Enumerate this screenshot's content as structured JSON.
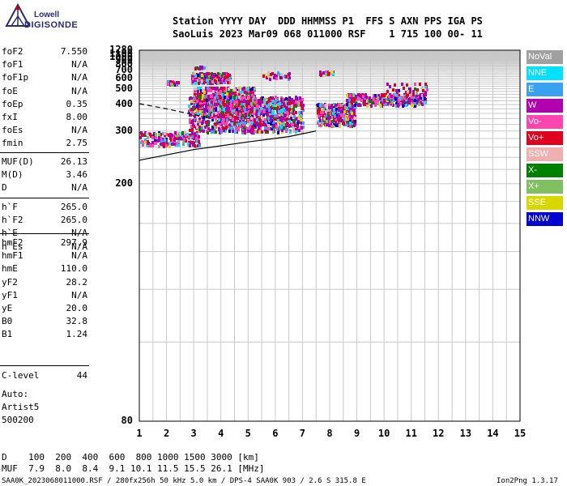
{
  "logo": {
    "line1": "Lowell",
    "line2": "DIGISONDE"
  },
  "header": {
    "line1": "Station YYYY DAY  DDD HHMMSS P1  FFS S AXN PPS IGA PS",
    "line2": "SaoLuis 2023 Mar09 068 011000 RSF    1 715 100 00- 11"
  },
  "params_group1": [
    {
      "name": "foF2",
      "value": "7.550"
    },
    {
      "name": "foF1",
      "value": "N/A"
    },
    {
      "name": "foF1p",
      "value": "N/A"
    },
    {
      "name": "foE",
      "value": "N/A"
    },
    {
      "name": "foEp",
      "value": "0.35"
    },
    {
      "name": "fxI",
      "value": "8.00"
    },
    {
      "name": "foEs",
      "value": "N/A"
    },
    {
      "name": "fmin",
      "value": "2.75"
    }
  ],
  "params_group2": [
    {
      "name": "MUF(D)",
      "value": "26.13"
    },
    {
      "name": "M(D)",
      "value": "3.46"
    },
    {
      "name": "D",
      "value": "N/A"
    }
  ],
  "params_group3": [
    {
      "name": "h`F",
      "value": "265.0"
    },
    {
      "name": "h`F2",
      "value": "265.0"
    },
    {
      "name": "h`E",
      "value": "N/A"
    },
    {
      "name": "h`Es",
      "value": "N/A"
    }
  ],
  "params_group4": [
    {
      "name": "hmF2",
      "value": "297.9"
    },
    {
      "name": "hmF1",
      "value": "N/A"
    },
    {
      "name": "hmE",
      "value": "110.0"
    },
    {
      "name": "yF2",
      "value": "28.2"
    },
    {
      "name": "yF1",
      "value": "N/A"
    },
    {
      "name": "yE",
      "value": "20.0"
    },
    {
      "name": "B0",
      "value": "32.8"
    },
    {
      "name": "B1",
      "value": "1.24"
    }
  ],
  "clevel": {
    "name": "C-level",
    "value": "44"
  },
  "auto": [
    "Auto:",
    "Artist5",
    "500200"
  ],
  "legend": [
    {
      "label": "NoVal",
      "color": "#a0a0a0"
    },
    {
      "label": "NNE",
      "color": "#00e0ff"
    },
    {
      "label": "E",
      "color": "#3aa0f0"
    },
    {
      "label": "W",
      "color": "#b000b0"
    },
    {
      "label": "Vo-",
      "color": "#ff44b0"
    },
    {
      "label": "Vo+",
      "color": "#e00020"
    },
    {
      "label": "SSW",
      "color": "#f0b0b0"
    },
    {
      "label": "X-",
      "color": "#008000"
    },
    {
      "label": "X+",
      "color": "#80c060"
    },
    {
      "label": "SSE",
      "color": "#d8d800"
    },
    {
      "label": "NNW",
      "color": "#0000d0"
    }
  ],
  "chart_data": {
    "type": "scatter",
    "title": "",
    "xlabel": "",
    "ylabel": "",
    "xlim": [
      1,
      15
    ],
    "ylim": [
      80,
      1280
    ],
    "x_ticks": [
      "1",
      "2",
      "3",
      "4",
      "5",
      "6",
      "7",
      "8",
      "9",
      "10",
      "11",
      "12",
      "13",
      "14",
      "15"
    ],
    "y_ticks": [
      {
        "v": 1280,
        "label": "1280"
      },
      {
        "v": 1100,
        "label": "1100"
      },
      {
        "v": 1000,
        "label": "1000"
      },
      {
        "v": 900,
        "label": "900"
      },
      {
        "v": 800,
        "label": "800"
      },
      {
        "v": 700,
        "label": "700"
      },
      {
        "v": 600,
        "label": "600"
      },
      {
        "v": 500,
        "label": "500"
      },
      {
        "v": 400,
        "label": "400"
      },
      {
        "v": 300,
        "label": "300"
      },
      {
        "v": 200,
        "label": "200"
      },
      {
        "v": 80,
        "label": "80"
      }
    ],
    "scale": "reciprocal",
    "grid": true,
    "trace_curves": [
      {
        "name": "dashed",
        "style": "dashed",
        "points": [
          [
            1.0,
            405
          ],
          [
            2.0,
            380
          ],
          [
            3.0,
            355
          ],
          [
            3.5,
            345
          ]
        ]
      },
      {
        "name": "solid",
        "style": "solid",
        "points": [
          [
            1.0,
            235
          ],
          [
            3.0,
            255
          ],
          [
            5.0,
            272
          ],
          [
            6.5,
            285
          ],
          [
            7.5,
            300
          ]
        ]
      }
    ],
    "point_clusters": [
      {
        "x": [
          1.0,
          3.2
        ],
        "y": [
          265,
          300
        ],
        "n": 200
      },
      {
        "x": [
          2.8,
          7.0
        ],
        "y": [
          300,
          450
        ],
        "n": 900
      },
      {
        "x": [
          3.0,
          5.2
        ],
        "y": [
          350,
          520
        ],
        "n": 500
      },
      {
        "x": [
          2.9,
          4.3
        ],
        "y": [
          560,
          680
        ],
        "n": 260
      },
      {
        "x": [
          3.7,
          6.3
        ],
        "y": [
          300,
          430
        ],
        "n": 400
      },
      {
        "x": [
          7.5,
          8.9
        ],
        "y": [
          320,
          410
        ],
        "n": 350
      },
      {
        "x": [
          8.6,
          11.5
        ],
        "y": [
          400,
          470
        ],
        "n": 350
      },
      {
        "x": [
          2.0,
          2.4
        ],
        "y": [
          540,
          580
        ],
        "n": 25
      },
      {
        "x": [
          3.0,
          3.4
        ],
        "y": [
          760,
          790
        ],
        "n": 12
      },
      {
        "x": [
          10.0,
          11.6
        ],
        "y": [
          480,
          560
        ],
        "n": 30
      },
      {
        "x": [
          7.6,
          8.1
        ],
        "y": [
          660,
          710
        ],
        "n": 20
      },
      {
        "x": [
          5.5,
          6.5
        ],
        "y": [
          600,
          690
        ],
        "n": 30
      }
    ]
  },
  "footer": {
    "d_row": "D    100  200  400  600  800 1000 1500 3000 [km]",
    "muf_row": "MUF  7.9  8.0  8.4  9.1 10.1 11.5 15.5 26.1 [MHz]",
    "file_info": "SAA0K_2023068011000.RSF / 280fx256h 50 kHz 5.0 km / DPS-4 SAA0K 903 / 2.6 S 315.8 E",
    "version": "Ion2Png 1.3.17"
  }
}
